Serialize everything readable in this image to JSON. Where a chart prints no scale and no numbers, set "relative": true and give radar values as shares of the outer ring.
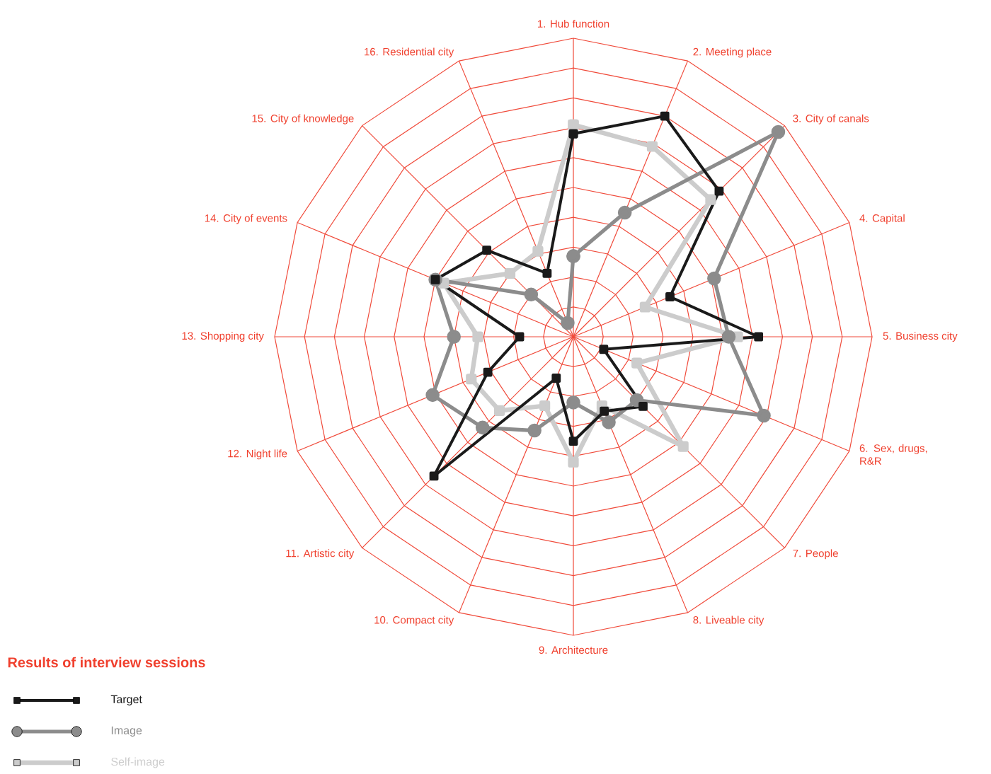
{
  "chart_data": {
    "type": "radar",
    "relative": true,
    "legend_title": "Results of interview sessions",
    "legend": "bottom left",
    "grid": true,
    "categories": [
      "1. Hub function",
      "2. Meeting place",
      "3. City of canals",
      "4. Capital",
      "5. Business city",
      "6. Sex, drugs, R&R",
      "7. People",
      "8. Liveable city",
      "9. Architecture",
      "10. Compact city",
      "11. Artistic city",
      "12. Night life",
      "13. Shopping city",
      "14. City of events",
      "15. City of knowledge",
      "16. Residential city"
    ],
    "series": [
      {
        "name": "Target",
        "color": "#1a1a1a",
        "marker": "square",
        "values": [
          0.68,
          0.8,
          0.69,
          0.35,
          0.62,
          0.11,
          0.33,
          0.27,
          0.35,
          0.15,
          0.66,
          0.31,
          0.18,
          0.5,
          0.41,
          0.23
        ]
      },
      {
        "name": "Image",
        "color": "#8c8c8c",
        "marker": "circle",
        "values": [
          0.27,
          0.45,
          0.97,
          0.51,
          0.52,
          0.69,
          0.3,
          0.31,
          0.22,
          0.34,
          0.43,
          0.51,
          0.4,
          0.5,
          0.2,
          0.05
        ]
      },
      {
        "name": "Self-image",
        "color": "#cccccc",
        "marker": "square",
        "values": [
          0.71,
          0.69,
          0.65,
          0.26,
          0.55,
          0.23,
          0.52,
          0.25,
          0.42,
          0.25,
          0.35,
          0.37,
          0.32,
          0.47,
          0.3,
          0.31
        ]
      }
    ]
  }
}
